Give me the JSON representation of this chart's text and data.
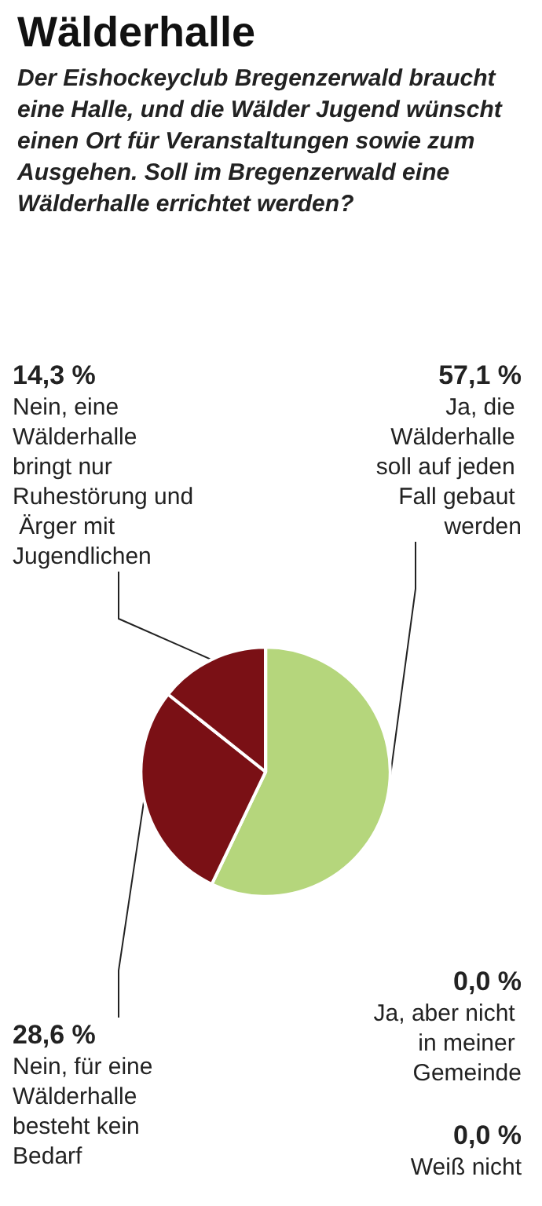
{
  "chart_data": {
    "type": "pie",
    "title": "Wälderhalle",
    "subtitle": "Der Eishockeyclub Bregenzerwald braucht eine Halle, und die Wälder Jugend wünscht einen Ort für Veranstaltungen sowie zum Ausgehen. Soll im Bregenzerwald eine Wälderhalle errichtet werden?",
    "categories": [
      "Ja, die Wälderhalle soll auf jeden Fall gebaut werden",
      "Nein, für eine Wälderhalle besteht kein Bedarf",
      "Nein, eine Wälderhalle bringt nur Ruhestörung und Ärger mit Jugendlichen",
      "Ja, aber nicht in meiner Gemeinde",
      "Weiß nicht"
    ],
    "values": [
      57.1,
      28.6,
      14.3,
      0,
      0
    ],
    "colors": [
      "#b5d67c",
      "#7a1015",
      "#7a1015",
      "#b5d67c",
      "#7a1015"
    ],
    "value_labels": [
      "57,1 %",
      "28,6 %",
      "14,3 %",
      "0,0 %",
      "0,0 %"
    ]
  }
}
